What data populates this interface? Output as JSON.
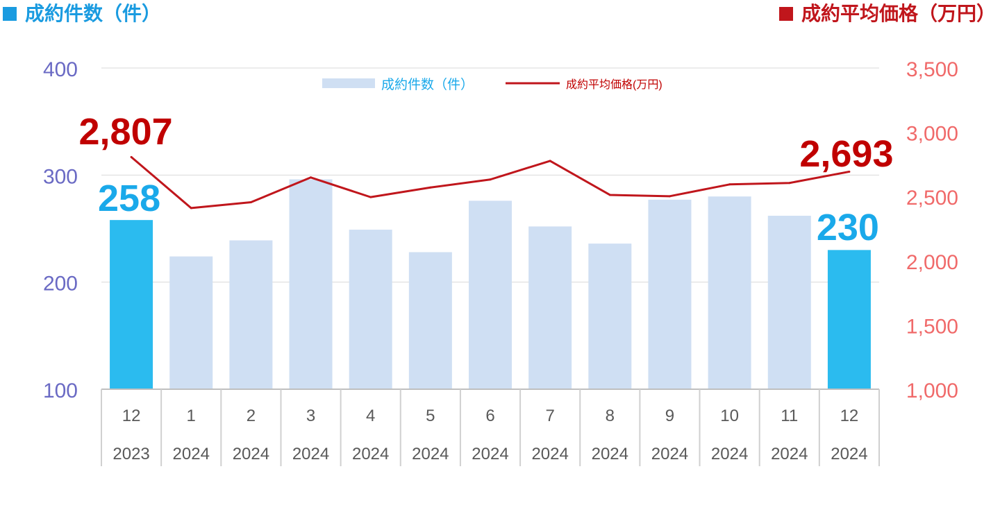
{
  "header": {
    "left_title": "成約件数（件）",
    "right_title": "成約平均価格（万円）",
    "left_color": "#1a9be0",
    "right_color": "#c0161c"
  },
  "chart_data": {
    "type": "bar",
    "categories": [
      "12",
      "1",
      "2",
      "3",
      "4",
      "5",
      "6",
      "7",
      "8",
      "9",
      "10",
      "11",
      "12"
    ],
    "years": [
      "2023",
      "2024",
      "2024",
      "2024",
      "2024",
      "2024",
      "2024",
      "2024",
      "2024",
      "2024",
      "2024",
      "2024",
      "2024"
    ],
    "series": [
      {
        "name": "成約件数（件）",
        "type": "bar",
        "axis": "left",
        "values": [
          258,
          224,
          239,
          296,
          249,
          228,
          276,
          252,
          236,
          277,
          280,
          262,
          230
        ],
        "color": "#cfdff3",
        "highlight_color": "#2bbbef",
        "highlight_indices": [
          0,
          12
        ]
      },
      {
        "name": "成約平均価格(万円)",
        "type": "line",
        "axis": "right",
        "values": [
          2807,
          2410,
          2455,
          2648,
          2495,
          2570,
          2632,
          2777,
          2512,
          2502,
          2594,
          2605,
          2693
        ],
        "color": "#c0161c"
      }
    ],
    "y_left": {
      "min": 100,
      "max": 400,
      "ticks": [
        100,
        200,
        300,
        400
      ],
      "tick_labels": [
        "100",
        "200",
        "300",
        "400"
      ],
      "color": "#6a6ac4"
    },
    "y_right": {
      "min": 1000,
      "max": 3500,
      "ticks": [
        1000,
        1500,
        2000,
        2500,
        3000,
        3500
      ],
      "tick_labels": [
        "1,000",
        "1,500",
        "2,000",
        "2,500",
        "3,000",
        "3,500"
      ],
      "color": "#f06a6a"
    },
    "annotations": [
      {
        "series": 0,
        "index": 0,
        "text": "258",
        "color": "#1aa9ea"
      },
      {
        "series": 0,
        "index": 12,
        "text": "230",
        "color": "#1aa9ea"
      },
      {
        "series": 1,
        "index": 0,
        "text": "2,807",
        "color": "#c00000"
      },
      {
        "series": 1,
        "index": 12,
        "text": "2,693",
        "color": "#c00000"
      }
    ],
    "legend": {
      "position": "top-center",
      "bar_label_color": "#1aa9ea",
      "line_label_color": "#c00000"
    },
    "grid": true
  }
}
